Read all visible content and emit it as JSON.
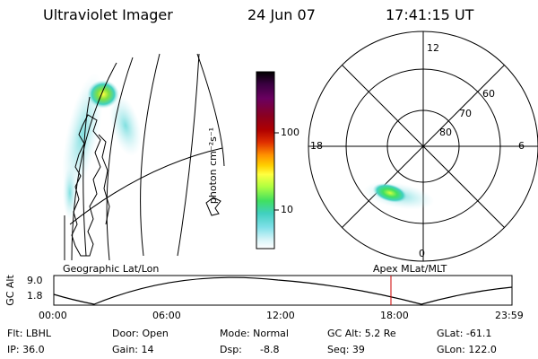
{
  "header": {
    "instrument": "Ultraviolet Imager",
    "date": "24 Jun 07",
    "time": "17:41:15 UT"
  },
  "left_panel": {
    "label": "Geographic Lat/Lon"
  },
  "right_panel": {
    "label": "Apex MLat/MLT",
    "mlt_labels": {
      "top": "12",
      "bottom": "0",
      "left": "18",
      "right": "6"
    },
    "lat_labels": [
      "60",
      "70",
      "80"
    ]
  },
  "colorbar": {
    "unit": "photon cm⁻²s⁻¹",
    "ticks": [
      "100",
      "10"
    ],
    "colors": [
      "#000000",
      "#3a0040",
      "#6a0060",
      "#8a0020",
      "#b00000",
      "#e03000",
      "#ff9000",
      "#ffd000",
      "#ffff40",
      "#b0ff40",
      "#40e060",
      "#40d0c0",
      "#80e0e8",
      "#d8f4f8",
      "#ffffff"
    ]
  },
  "gc_alt_plot": {
    "ylabel": "GC Alt",
    "y_ticks": [
      "9.0",
      "1.8"
    ],
    "x_ticks": [
      "00:00",
      "06:00",
      "12:00",
      "18:00",
      "23:59"
    ],
    "marker_time": "17:41"
  },
  "footer": {
    "filt": "Flt: LBHL",
    "ip": "IP: 36.0",
    "door": "Door: Open",
    "gain": "Gain: 14",
    "mode": "Mode: Normal",
    "dsp": "Dsp:",
    "dsp_value": "-8.8",
    "gc_alt": "GC Alt: 5.2 Re",
    "seq": "Seq: 39",
    "glat": "GLat: -61.1",
    "glon": "GLon: 122.0"
  }
}
